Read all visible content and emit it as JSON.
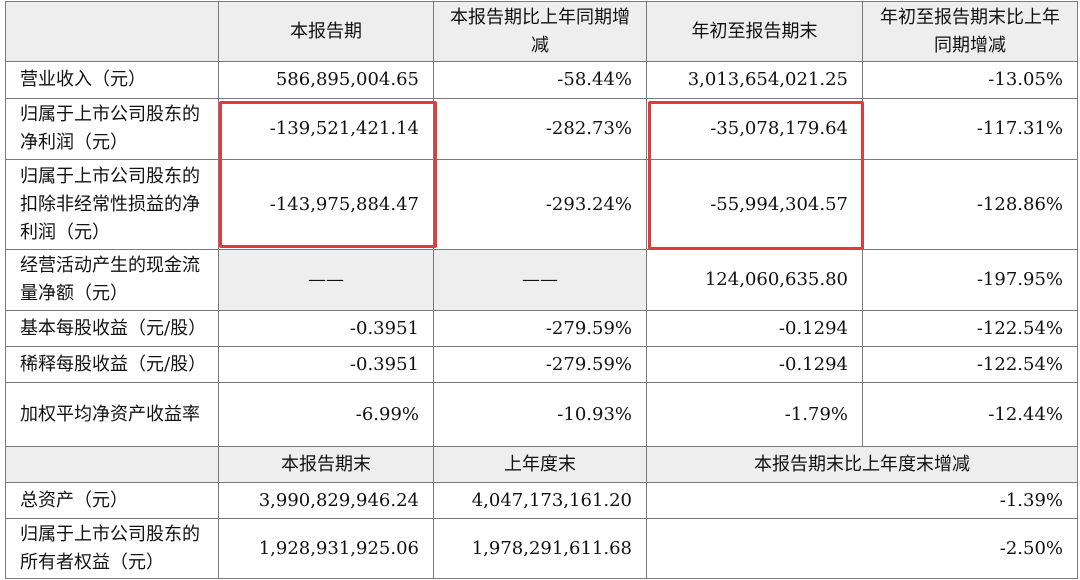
{
  "header": {
    "corner": "",
    "col1": "本报告期",
    "col2": "本报告期比上年同期增减",
    "col3": "年初至报告期末",
    "col4": "年初至报告期末比上年同期增减"
  },
  "rows": [
    {
      "label": "营业收入（元）",
      "v1": "586,895,004.65",
      "v2": "-58.44%",
      "v3": "3,013,654,021.25",
      "v4": "-13.05%"
    },
    {
      "label": "归属于上市公司股东的净利润（元）",
      "v1": "-139,521,421.14",
      "v2": "-282.73%",
      "v3": "-35,078,179.64",
      "v4": "-117.31%"
    },
    {
      "label": "归属于上市公司股东的扣除非经常性损益的净利润（元）",
      "v1": "-143,975,884.47",
      "v2": "-293.24%",
      "v3": "-55,994,304.57",
      "v4": "-128.86%"
    },
    {
      "label": "经营活动产生的现金流量净额（元）",
      "v1": "——",
      "v2": "——",
      "v3": "124,060,635.80",
      "v4": "-197.95%"
    },
    {
      "label": "基本每股收益（元/股）",
      "v1": "-0.3951",
      "v2": "-279.59%",
      "v3": "-0.1294",
      "v4": "-122.54%"
    },
    {
      "label": "稀释每股收益（元/股）",
      "v1": "-0.3951",
      "v2": "-279.59%",
      "v3": "-0.1294",
      "v4": "-122.54%"
    },
    {
      "label": "加权平均净资产收益率",
      "v1": "-6.99%",
      "v2": "-10.93%",
      "v3": "-1.79%",
      "v4": "-12.44%"
    }
  ],
  "header2": {
    "corner": "",
    "col1": "本报告期末",
    "col2": "上年度末",
    "col3": "本报告期末比上年度末增减"
  },
  "rows2": [
    {
      "label": "总资产（元）",
      "v1": "3,990,829,946.24",
      "v2": "4,047,173,161.20",
      "v3": "-1.39%"
    },
    {
      "label": "归属于上市公司股东的所有者权益（元）",
      "v1": "1,928,931,925.06",
      "v2": "1,978,291,611.68",
      "v3": "-2.50%"
    }
  ],
  "highlight_color": "#e33a3a"
}
